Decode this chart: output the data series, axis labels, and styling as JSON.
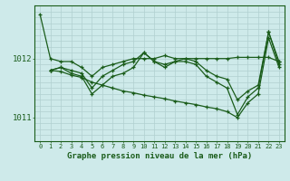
{
  "background_color": "#ceeaea",
  "grid_color": "#b0d0d0",
  "line_color": "#1a5c1a",
  "title": "Graphe pression niveau de la mer (hPa)",
  "xlim": [
    -0.5,
    23.5
  ],
  "ylim": [
    1010.6,
    1012.9
  ],
  "yticks": [
    1011,
    1012
  ],
  "xticks": [
    0,
    1,
    2,
    3,
    4,
    5,
    6,
    7,
    8,
    9,
    10,
    11,
    12,
    13,
    14,
    15,
    16,
    17,
    18,
    19,
    20,
    21,
    22,
    23
  ],
  "series": [
    {
      "x": [
        0,
        1,
        2,
        3,
        4,
        5,
        6,
        7,
        8,
        9,
        10,
        11,
        12,
        13,
        14,
        15,
        16,
        17,
        18,
        19,
        20,
        21,
        22,
        23
      ],
      "y": [
        1012.75,
        1012.0,
        1011.95,
        1011.95,
        1011.85,
        1011.7,
        1011.85,
        1011.9,
        1011.95,
        1012.0,
        1012.0,
        1012.0,
        1012.05,
        1012.0,
        1012.0,
        1012.0,
        1012.0,
        1012.0,
        1012.0,
        1012.02,
        1012.02,
        1012.02,
        1012.02,
        1011.95
      ]
    },
    {
      "x": [
        1,
        2,
        3,
        4,
        5,
        6,
        7,
        8,
        9,
        10,
        11,
        12,
        13,
        14,
        15,
        16,
        17,
        18,
        19,
        20,
        21,
        22,
        23
      ],
      "y": [
        1011.8,
        1011.85,
        1011.8,
        1011.75,
        1011.5,
        1011.7,
        1011.8,
        1011.9,
        1011.95,
        1012.1,
        1011.95,
        1011.9,
        1011.95,
        1012.0,
        1011.95,
        1011.8,
        1011.7,
        1011.65,
        1011.3,
        1011.45,
        1011.55,
        1012.45,
        1011.95
      ]
    },
    {
      "x": [
        1,
        2,
        3,
        4,
        5,
        6,
        7,
        8,
        9,
        10,
        11,
        12,
        13,
        14,
        15,
        16,
        17,
        18,
        19,
        20,
        21,
        22,
        23
      ],
      "y": [
        1011.8,
        1011.85,
        1011.75,
        1011.7,
        1011.4,
        1011.55,
        1011.7,
        1011.75,
        1011.85,
        1012.1,
        1011.95,
        1011.85,
        1011.95,
        1011.95,
        1011.9,
        1011.7,
        1011.6,
        1011.5,
        1011.05,
        1011.35,
        1011.5,
        1012.45,
        1011.9
      ]
    },
    {
      "x": [
        1,
        2,
        3,
        4,
        5,
        6,
        7,
        8,
        9,
        10,
        11,
        12,
        13,
        14,
        15,
        16,
        17,
        18,
        19,
        20,
        21,
        22,
        23
      ],
      "y": [
        1011.8,
        1011.78,
        1011.72,
        1011.68,
        1011.6,
        1011.55,
        1011.5,
        1011.45,
        1011.42,
        1011.38,
        1011.35,
        1011.32,
        1011.28,
        1011.25,
        1011.22,
        1011.18,
        1011.15,
        1011.1,
        1011.0,
        1011.25,
        1011.4,
        1012.35,
        1011.85
      ]
    }
  ]
}
